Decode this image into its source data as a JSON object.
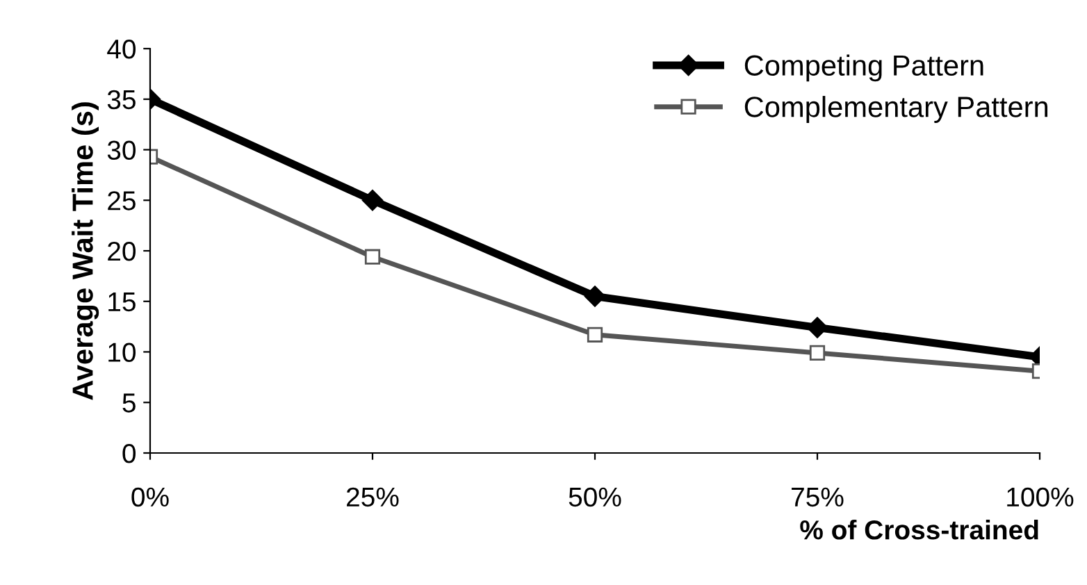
{
  "chart_data": {
    "type": "line",
    "xlabel": "% of Cross-trained",
    "ylabel": "Average Wait Time (s)",
    "categories": [
      "0%",
      "25%",
      "50%",
      "75%",
      "100%"
    ],
    "series": [
      {
        "name": "Competing Pattern",
        "color": "#000000",
        "marker": "diamond",
        "values": [
          35,
          25,
          15.5,
          12.4,
          9.5
        ]
      },
      {
        "name": "Complementary Pattern",
        "color": "#555555",
        "marker": "square",
        "values": [
          29.3,
          19.4,
          11.7,
          9.9,
          8.1
        ]
      }
    ],
    "ylim": [
      0,
      40
    ],
    "yticks": [
      0,
      5,
      10,
      15,
      20,
      25,
      30,
      35,
      40
    ],
    "grid": false,
    "legend": "top right"
  }
}
